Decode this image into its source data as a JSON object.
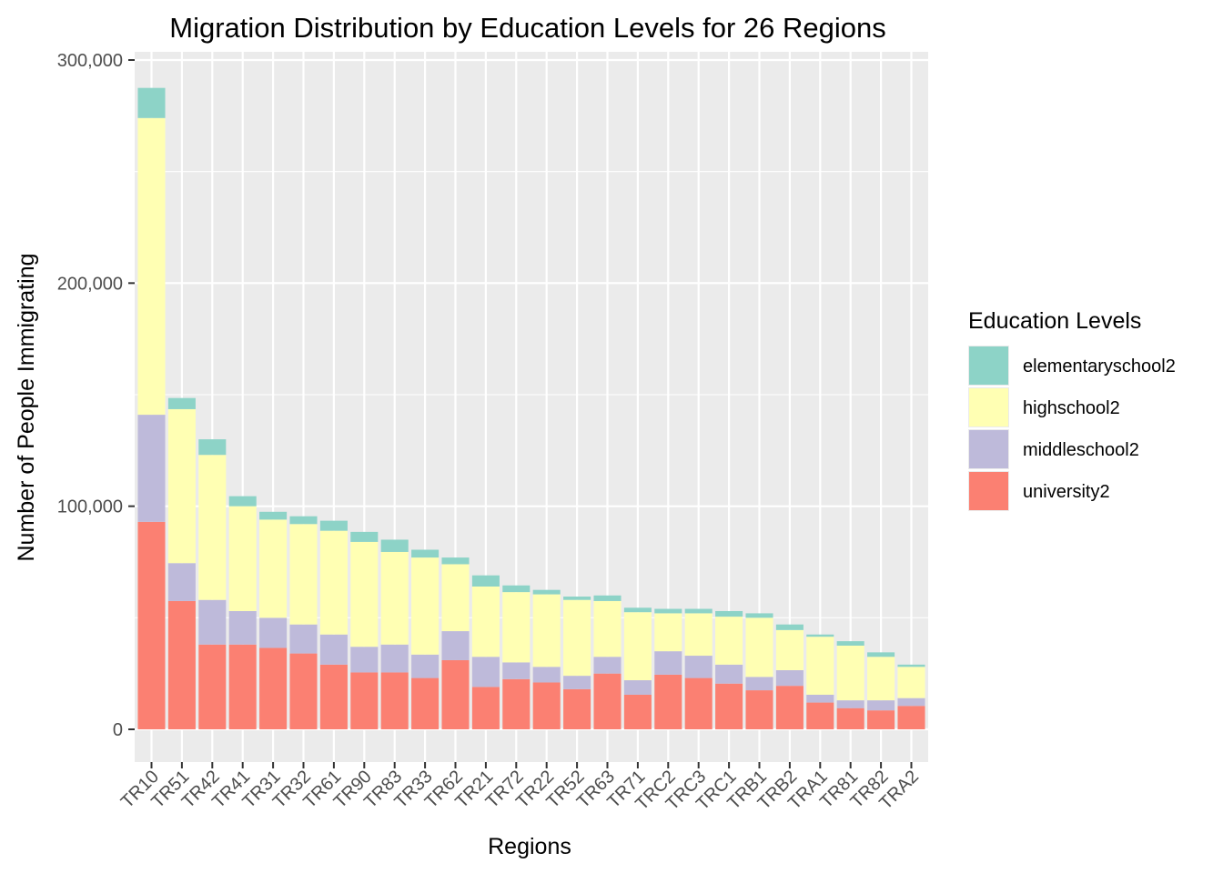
{
  "chart_data": {
    "type": "bar",
    "stacked": true,
    "title": "Migration Distribution by Education Levels for 26 Regions",
    "xlabel": "Regions",
    "ylabel": "Number of People Immigrating",
    "ylim": [
      0,
      300000
    ],
    "yticks": [
      0,
      100000,
      200000,
      300000
    ],
    "ytick_labels": [
      "0",
      "100,000",
      "200,000",
      "300,000"
    ],
    "grid": true,
    "legend": {
      "title": "Education Levels",
      "position": "right"
    },
    "categories": [
      "TR10",
      "TR51",
      "TR42",
      "TR41",
      "TR31",
      "TR32",
      "TR61",
      "TR90",
      "TR83",
      "TR33",
      "TR62",
      "TR21",
      "TR72",
      "TR22",
      "TR52",
      "TR63",
      "TR71",
      "TRC2",
      "TRC3",
      "TRC1",
      "TRB1",
      "TRB2",
      "TRA1",
      "TR81",
      "TR82",
      "TRA2"
    ],
    "series": [
      {
        "name": "university2",
        "color": "#FB8072",
        "values": [
          93000,
          57500,
          38000,
          38000,
          36500,
          34000,
          29000,
          25500,
          25500,
          23000,
          31000,
          19000,
          22500,
          21000,
          18000,
          25000,
          15500,
          24500,
          23000,
          20500,
          17500,
          19500,
          12000,
          9500,
          8500,
          10500
        ]
      },
      {
        "name": "middleschool2",
        "color": "#BEBADA",
        "values": [
          48000,
          17000,
          20000,
          15000,
          13500,
          13000,
          13500,
          11500,
          12500,
          10500,
          13000,
          13500,
          7500,
          7000,
          6000,
          7500,
          6500,
          10500,
          10000,
          8500,
          6000,
          7000,
          3500,
          3500,
          4500,
          3500
        ]
      },
      {
        "name": "highschool2",
        "color": "#FFFFB3",
        "values": [
          133000,
          69000,
          65000,
          47000,
          44000,
          45000,
          46500,
          47000,
          41500,
          43500,
          30000,
          31500,
          31500,
          32500,
          34000,
          25000,
          30500,
          17000,
          19000,
          21500,
          26500,
          18000,
          26000,
          24500,
          19500,
          14000
        ]
      },
      {
        "name": "elementaryschool2",
        "color": "#8DD3C7",
        "values": [
          13500,
          5000,
          7000,
          4500,
          3500,
          3500,
          4500,
          4500,
          5500,
          3500,
          3000,
          5000,
          3000,
          2000,
          1500,
          2500,
          2000,
          2000,
          2000,
          2500,
          2000,
          2500,
          1000,
          2000,
          2000,
          1000
        ]
      }
    ],
    "legend_order": [
      "elementaryschool2",
      "highschool2",
      "middleschool2",
      "university2"
    ]
  },
  "colors": {
    "panel_background": "#EBEBEB",
    "grid_major": "#FFFFFF",
    "tick_text": "#4D4D4D"
  }
}
